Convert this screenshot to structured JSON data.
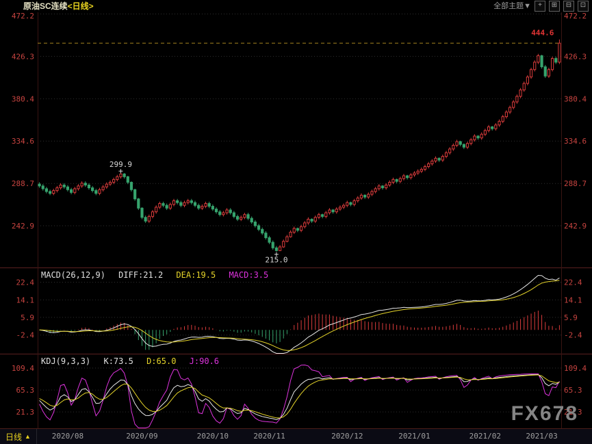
{
  "header": {
    "title": "原油SC连续",
    "period_tag": "<日线>",
    "theme_selector": "全部主题▼",
    "layout_icons": [
      {
        "name": "crosshair",
        "glyph": "+"
      },
      {
        "name": "grid-2x2",
        "glyph": "⊞"
      },
      {
        "name": "split-horizontal",
        "glyph": "⊟"
      },
      {
        "name": "single-pane",
        "glyph": "⊡"
      }
    ]
  },
  "footer": {
    "period_label": "日线",
    "period_arrow": "▲"
  },
  "watermark": "FX678",
  "colors": {
    "up": "#db3c3c",
    "down": "#36a36d",
    "axis_text": "#c84440",
    "grid": "#2f2f2f",
    "separator": "#5a2020",
    "edge": "#3a1412",
    "dashed_line": "#a8861f",
    "high_label": "#e23434",
    "marker_text": "#d8d8d8",
    "diff_line": "#e8e8e8",
    "dea_line": "#e6d52a",
    "j_line": "#dd33dd",
    "k_line": "#e8e8e8",
    "d_line": "#e6d52a"
  },
  "chart_data": {
    "type": "candlestick",
    "symbol": "原油SC连续",
    "period": "日线",
    "legend_position": "none",
    "grid": "dotted-horizontal",
    "x_labels": [
      {
        "label": "2020/08",
        "index": 8
      },
      {
        "label": "2020/09",
        "index": 29
      },
      {
        "label": "2020/10",
        "index": 49
      },
      {
        "label": "2020/11",
        "index": 65
      },
      {
        "label": "2020/12",
        "index": 87
      },
      {
        "label": "2021/01",
        "index": 106
      },
      {
        "label": "2021/02",
        "index": 126
      },
      {
        "label": "2021/03",
        "index": 142
      }
    ],
    "main": {
      "yticks": [
        472.2,
        426.3,
        380.4,
        334.6,
        288.7,
        242.9
      ],
      "ylim": [
        197,
        474
      ],
      "last_price_line": 440.6,
      "annotations": [
        {
          "type": "high",
          "index": 147,
          "value": 444.6,
          "label": "444.6"
        },
        {
          "type": "swing-high",
          "index": 23,
          "value": 299.9,
          "label": "299.9"
        },
        {
          "type": "swing-low",
          "index": 67,
          "value": 215.0,
          "label": "215.0"
        }
      ],
      "candles": [
        [
          288,
          290,
          284,
          286
        ],
        [
          286,
          288,
          281,
          283
        ],
        [
          283,
          285,
          278,
          280
        ],
        [
          280,
          282,
          276,
          278
        ],
        [
          278,
          283,
          276,
          281
        ],
        [
          281,
          286,
          279,
          284
        ],
        [
          284,
          289,
          282,
          287
        ],
        [
          287,
          289,
          283,
          285
        ],
        [
          285,
          287,
          280,
          282
        ],
        [
          282,
          284,
          277,
          279
        ],
        [
          279,
          285,
          277,
          283
        ],
        [
          283,
          288,
          281,
          286
        ],
        [
          286,
          291,
          284,
          289
        ],
        [
          289,
          291,
          285,
          287
        ],
        [
          287,
          289,
          282,
          284
        ],
        [
          284,
          286,
          279,
          281
        ],
        [
          281,
          283,
          276,
          278
        ],
        [
          278,
          284,
          276,
          282
        ],
        [
          282,
          287,
          280,
          285
        ],
        [
          285,
          290,
          283,
          288
        ],
        [
          288,
          292,
          286,
          290
        ],
        [
          290,
          295,
          288,
          293
        ],
        [
          293,
          298,
          291,
          296
        ],
        [
          296,
          299.9,
          294,
          299
        ],
        [
          299,
          300,
          294,
          296
        ],
        [
          296,
          297,
          288,
          290
        ],
        [
          290,
          291,
          280,
          282
        ],
        [
          282,
          283,
          270,
          272
        ],
        [
          272,
          273,
          260,
          262
        ],
        [
          262,
          263,
          250,
          252
        ],
        [
          252,
          254,
          246,
          248
        ],
        [
          248,
          255,
          246,
          253
        ],
        [
          253,
          260,
          251,
          258
        ],
        [
          258,
          265,
          256,
          263
        ],
        [
          263,
          269,
          261,
          267
        ],
        [
          267,
          269,
          263,
          265
        ],
        [
          265,
          267,
          260,
          262
        ],
        [
          262,
          268,
          260,
          266
        ],
        [
          266,
          272,
          264,
          270
        ],
        [
          270,
          272,
          266,
          268
        ],
        [
          268,
          270,
          263,
          265
        ],
        [
          265,
          270,
          263,
          268
        ],
        [
          268,
          272,
          266,
          270
        ],
        [
          270,
          272,
          266,
          268
        ],
        [
          268,
          270,
          263,
          265
        ],
        [
          265,
          267,
          260,
          262
        ],
        [
          262,
          266,
          260,
          264
        ],
        [
          264,
          269,
          262,
          267
        ],
        [
          267,
          269,
          262,
          264
        ],
        [
          264,
          266,
          259,
          261
        ],
        [
          261,
          263,
          256,
          258
        ],
        [
          258,
          260,
          253,
          255
        ],
        [
          255,
          259,
          253,
          257
        ],
        [
          257,
          262,
          255,
          260
        ],
        [
          260,
          262,
          255,
          257
        ],
        [
          257,
          259,
          251,
          253
        ],
        [
          253,
          255,
          248,
          250
        ],
        [
          250,
          254,
          248,
          252
        ],
        [
          252,
          257,
          250,
          255
        ],
        [
          255,
          257,
          249,
          251
        ],
        [
          251,
          253,
          245,
          247
        ],
        [
          247,
          249,
          241,
          243
        ],
        [
          243,
          245,
          237,
          239
        ],
        [
          239,
          241,
          233,
          235
        ],
        [
          235,
          237,
          228,
          230
        ],
        [
          230,
          232,
          223,
          225
        ],
        [
          225,
          227,
          217,
          219
        ],
        [
          219,
          221,
          215,
          216
        ],
        [
          216,
          222,
          216,
          220
        ],
        [
          220,
          228,
          219,
          226
        ],
        [
          226,
          233,
          225,
          231
        ],
        [
          231,
          238,
          230,
          236
        ],
        [
          236,
          242,
          234,
          240
        ],
        [
          240,
          241,
          236,
          238
        ],
        [
          238,
          244,
          236,
          242
        ],
        [
          242,
          248,
          240,
          246
        ],
        [
          246,
          252,
          244,
          250
        ],
        [
          250,
          251,
          246,
          248
        ],
        [
          248,
          254,
          246,
          252
        ],
        [
          252,
          257,
          250,
          255
        ],
        [
          255,
          256,
          251,
          253
        ],
        [
          253,
          259,
          251,
          257
        ],
        [
          257,
          262,
          255,
          260
        ],
        [
          260,
          261,
          256,
          258
        ],
        [
          258,
          263,
          256,
          261
        ],
        [
          261,
          265,
          259,
          263
        ],
        [
          263,
          267,
          261,
          265
        ],
        [
          265,
          270,
          263,
          268
        ],
        [
          268,
          269,
          264,
          266
        ],
        [
          266,
          272,
          264,
          270
        ],
        [
          270,
          275,
          268,
          273
        ],
        [
          273,
          278,
          271,
          276
        ],
        [
          276,
          277,
          272,
          274
        ],
        [
          274,
          279,
          272,
          277
        ],
        [
          277,
          282,
          275,
          280
        ],
        [
          280,
          285,
          278,
          283
        ],
        [
          283,
          288,
          281,
          286
        ],
        [
          286,
          287,
          282,
          284
        ],
        [
          284,
          289,
          282,
          287
        ],
        [
          287,
          292,
          285,
          290
        ],
        [
          290,
          295,
          288,
          293
        ],
        [
          293,
          294,
          289,
          291
        ],
        [
          291,
          296,
          289,
          294
        ],
        [
          294,
          299,
          292,
          297
        ],
        [
          297,
          298,
          293,
          295
        ],
        [
          295,
          300,
          293,
          298
        ],
        [
          298,
          302,
          296,
          300
        ],
        [
          300,
          304,
          298,
          302
        ],
        [
          302,
          306,
          300,
          304
        ],
        [
          304,
          309,
          302,
          307
        ],
        [
          307,
          312,
          305,
          310
        ],
        [
          310,
          315,
          308,
          313
        ],
        [
          313,
          318,
          311,
          316
        ],
        [
          316,
          317,
          312,
          314
        ],
        [
          314,
          320,
          312,
          318
        ],
        [
          318,
          324,
          316,
          322
        ],
        [
          322,
          328,
          320,
          326
        ],
        [
          326,
          332,
          324,
          330
        ],
        [
          330,
          336,
          328,
          334
        ],
        [
          334,
          335,
          329,
          331
        ],
        [
          331,
          332,
          326,
          328
        ],
        [
          328,
          334,
          326,
          332
        ],
        [
          332,
          338,
          330,
          336
        ],
        [
          336,
          342,
          334,
          340
        ],
        [
          340,
          341,
          336,
          338
        ],
        [
          338,
          344,
          336,
          342
        ],
        [
          342,
          348,
          340,
          346
        ],
        [
          346,
          352,
          344,
          350
        ],
        [
          350,
          351,
          346,
          348
        ],
        [
          348,
          354,
          346,
          352
        ],
        [
          352,
          358,
          350,
          356
        ],
        [
          356,
          363,
          354,
          361
        ],
        [
          361,
          368,
          359,
          366
        ],
        [
          366,
          373,
          364,
          371
        ],
        [
          371,
          379,
          369,
          377
        ],
        [
          377,
          385,
          375,
          383
        ],
        [
          383,
          392,
          381,
          390
        ],
        [
          390,
          399,
          388,
          397
        ],
        [
          397,
          406,
          395,
          404
        ],
        [
          404,
          414,
          402,
          412
        ],
        [
          412,
          422,
          410,
          420
        ],
        [
          420,
          429,
          418,
          427
        ],
        [
          427,
          428,
          413,
          415
        ],
        [
          415,
          417,
          403,
          405
        ],
        [
          405,
          414,
          403,
          412
        ],
        [
          412,
          426,
          410,
          424
        ],
        [
          424,
          426,
          418,
          420
        ],
        [
          420,
          444.6,
          418,
          440.6
        ]
      ]
    },
    "macd": {
      "name": "MACD(26,12,9)",
      "diff_label": "DIFF:21.2",
      "dea_label": "DEA:19.5",
      "macd_label": "MACD:3.5",
      "params": [
        26,
        12,
        9
      ],
      "yticks": [
        22.4,
        14.1,
        5.9,
        -2.4
      ],
      "ylim": [
        -11.5,
        29
      ]
    },
    "kdj": {
      "name": "KDJ(9,3,3)",
      "k_label": "K:73.5",
      "d_label": "D:65.0",
      "j_label": "J:90.6",
      "params": [
        9,
        3,
        3
      ],
      "yticks": [
        109.4,
        65.3,
        21.3
      ],
      "ylim": [
        -13,
        137
      ]
    }
  }
}
